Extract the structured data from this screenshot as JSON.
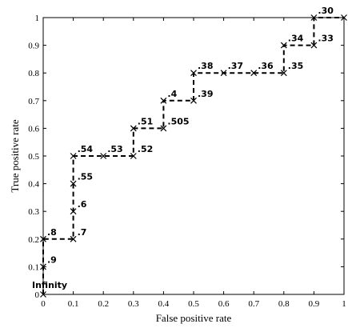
{
  "chart_data": {
    "type": "line",
    "title": "",
    "xlabel": "False positive rate",
    "ylabel": "True positive rate",
    "xlim": [
      0,
      1
    ],
    "ylim": [
      0,
      1
    ],
    "grid": false,
    "x_ticks": [
      "0",
      "0.1",
      "0.2",
      "0.3",
      "0.4",
      "0.5",
      "0.6",
      "0.7",
      "0.8",
      "0.9",
      "1"
    ],
    "y_ticks": [
      "0",
      "0.1",
      "0.2",
      "0.3",
      "0.4",
      "0.5",
      "0.6",
      "0.7",
      "0.8",
      "0.9",
      "1"
    ],
    "series": [
      {
        "line_style": "dashed",
        "color": "#000000",
        "marker": "x",
        "points": [
          {
            "x": 0.0,
            "y": 0.0,
            "label": "Infinity"
          },
          {
            "x": 0.0,
            "y": 0.1,
            "label": ".9"
          },
          {
            "x": 0.0,
            "y": 0.2,
            "label": ".8"
          },
          {
            "x": 0.1,
            "y": 0.2,
            "label": ".7"
          },
          {
            "x": 0.1,
            "y": 0.3,
            "label": ".6"
          },
          {
            "x": 0.1,
            "y": 0.4,
            "label": ".55"
          },
          {
            "x": 0.1,
            "y": 0.5,
            "label": ".54"
          },
          {
            "x": 0.2,
            "y": 0.5,
            "label": ".53"
          },
          {
            "x": 0.3,
            "y": 0.5,
            "label": ".52"
          },
          {
            "x": 0.3,
            "y": 0.6,
            "label": ".51"
          },
          {
            "x": 0.4,
            "y": 0.6,
            "label": ".505"
          },
          {
            "x": 0.4,
            "y": 0.7,
            "label": ".4"
          },
          {
            "x": 0.5,
            "y": 0.7,
            "label": ".39"
          },
          {
            "x": 0.5,
            "y": 0.8,
            "label": ".38"
          },
          {
            "x": 0.6,
            "y": 0.8,
            "label": ".37"
          },
          {
            "x": 0.7,
            "y": 0.8,
            "label": ".36"
          },
          {
            "x": 0.8,
            "y": 0.8,
            "label": ".35"
          },
          {
            "x": 0.8,
            "y": 0.9,
            "label": ".34"
          },
          {
            "x": 0.9,
            "y": 0.9,
            "label": ".33"
          },
          {
            "x": 0.9,
            "y": 1.0,
            "label": ".30"
          },
          {
            "x": 1.0,
            "y": 1.0,
            "label": ""
          }
        ]
      }
    ]
  }
}
